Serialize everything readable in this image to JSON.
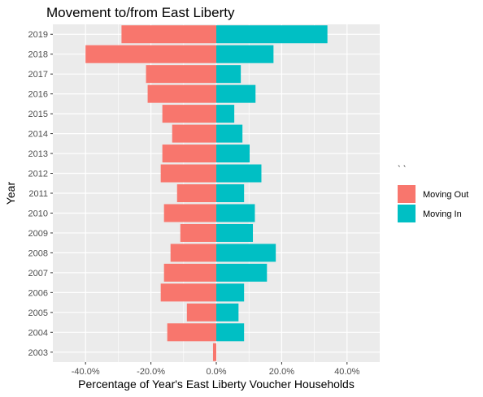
{
  "chart_data": {
    "type": "bar",
    "orientation": "horizontal-diverging",
    "title": "Movement to/from East Liberty",
    "xlabel": "Percentage of Year's East Liberty Voucher Households",
    "ylabel": "Year",
    "xlim": [
      -0.5,
      0.5
    ],
    "x_ticks": [
      -0.4,
      -0.2,
      0.0,
      0.2,
      0.4
    ],
    "x_tick_labels": [
      "-40.0%",
      "-20.0%",
      "0.0%",
      "20.0%",
      "40.0%"
    ],
    "grid": true,
    "legend_position": "right",
    "legend_title": "` `",
    "categories": [
      "2003",
      "2004",
      "2005",
      "2006",
      "2007",
      "2008",
      "2009",
      "2010",
      "2011",
      "2012",
      "2013",
      "2014",
      "2015",
      "2016",
      "2017",
      "2018",
      "2019"
    ],
    "series": [
      {
        "name": "Moving Out",
        "color": "#F8766D",
        "values": [
          -0.01,
          -0.15,
          -0.09,
          -0.17,
          -0.16,
          -0.14,
          -0.11,
          -0.16,
          -0.12,
          -0.17,
          -0.165,
          -0.135,
          -0.165,
          -0.21,
          -0.215,
          -0.4,
          -0.29
        ]
      },
      {
        "name": "Moving In",
        "color": "#00BFC4",
        "values": [
          0.0,
          0.085,
          0.068,
          0.085,
          0.155,
          0.182,
          0.112,
          0.118,
          0.085,
          0.138,
          0.102,
          0.08,
          0.055,
          0.12,
          0.075,
          0.175,
          0.34
        ]
      }
    ]
  }
}
